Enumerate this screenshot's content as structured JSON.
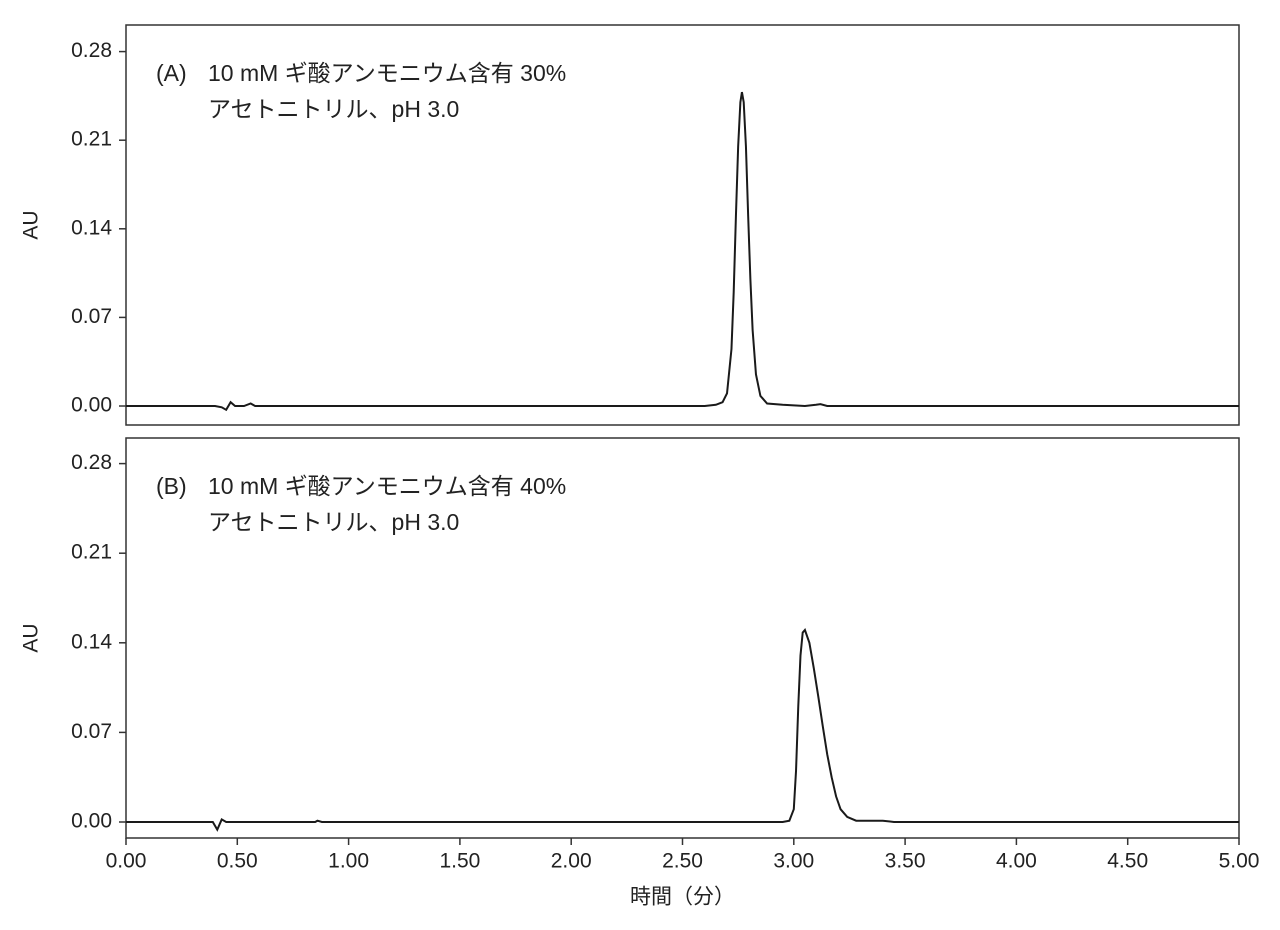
{
  "chart_data": [
    {
      "type": "line",
      "panel": "(A)",
      "annotation": [
        "10 mM ギ酸アンモニウム含有 30%",
        "アセトニトリル、pH 3.0"
      ],
      "ylabel": "AU",
      "xlim": [
        0,
        5
      ],
      "ylim": [
        -0.015,
        0.301
      ],
      "yticks": [
        {
          "value": 0,
          "label": "0.00"
        },
        0.07,
        0.14,
        0.21,
        0.28
      ],
      "color": "#1a1a1a",
      "x": [
        0,
        0.4,
        0.43,
        0.45,
        0.47,
        0.49,
        0.53,
        0.56,
        0.58,
        2.4,
        2.6,
        2.65,
        2.68,
        2.7,
        2.72,
        2.73,
        2.74,
        2.75,
        2.76,
        2.767,
        2.775,
        2.785,
        2.795,
        2.805,
        2.815,
        2.83,
        2.85,
        2.88,
        2.95,
        3.05,
        3.1,
        3.12,
        3.15,
        5.0
      ],
      "values": [
        0,
        0,
        -0.001,
        -0.003,
        0.003,
        0,
        0,
        0.002,
        0,
        0,
        0,
        0.001,
        0.003,
        0.01,
        0.045,
        0.09,
        0.15,
        0.205,
        0.24,
        0.248,
        0.24,
        0.205,
        0.15,
        0.1,
        0.06,
        0.025,
        0.008,
        0.002,
        0.001,
        0,
        0.001,
        0.0015,
        0,
        0
      ]
    },
    {
      "type": "line",
      "panel": "(B)",
      "annotation": [
        "10 mM ギ酸アンモニウム含有 40%",
        "アセトニトリル、pH 3.0"
      ],
      "ylabel": "AU",
      "xlabel": "時間（分）",
      "xlim": [
        0,
        5
      ],
      "ylim": [
        -0.0125,
        0.3
      ],
      "xticks": [
        {
          "value": 0,
          "label": "0.00"
        },
        {
          "value": 0.5,
          "label": "0.50"
        },
        {
          "value": 1,
          "label": "1.00"
        },
        {
          "value": 1.5,
          "label": "1.50"
        },
        {
          "value": 2,
          "label": "2.00"
        },
        {
          "value": 2.5,
          "label": "2.50"
        },
        {
          "value": 3,
          "label": "3.00"
        },
        {
          "value": 3.5,
          "label": "3.50"
        },
        {
          "value": 4,
          "label": "4.00"
        },
        {
          "value": 4.5,
          "label": "4.50"
        },
        {
          "value": 5,
          "label": "5.00"
        }
      ],
      "yticks": [
        {
          "value": 0,
          "label": "0.00"
        },
        0.07,
        0.14,
        0.21,
        0.28
      ],
      "color": "#1a1a1a",
      "x": [
        0,
        0.39,
        0.41,
        0.43,
        0.45,
        0.85,
        0.86,
        0.88,
        2.95,
        2.98,
        3.0,
        3.01,
        3.02,
        3.03,
        3.04,
        3.05,
        3.07,
        3.09,
        3.11,
        3.13,
        3.15,
        3.17,
        3.19,
        3.21,
        3.24,
        3.28,
        3.35,
        3.4,
        3.45,
        5.0
      ],
      "values": [
        0,
        0,
        -0.006,
        0.002,
        0,
        0,
        0.001,
        0,
        0,
        0.001,
        0.01,
        0.04,
        0.09,
        0.13,
        0.148,
        0.15,
        0.14,
        0.12,
        0.098,
        0.075,
        0.053,
        0.035,
        0.02,
        0.01,
        0.004,
        0.001,
        0.001,
        0.001,
        0,
        0
      ]
    }
  ]
}
